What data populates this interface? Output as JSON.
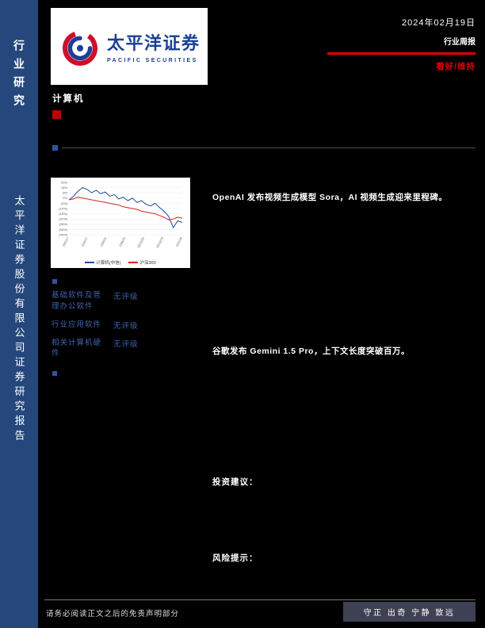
{
  "sidebar": {
    "top_label": "行业研究",
    "bottom_label": "太平洋证券股份有限公司证券研究报告"
  },
  "header": {
    "logo_cn": "太平洋证券",
    "logo_en": "PACIFIC SECURITIES",
    "date": "2024年02月19日",
    "report_type": "行业周报",
    "rating": "看好/维持"
  },
  "page": {
    "industry": "计算机"
  },
  "highlights": {
    "first": "OpenAI 发布视频生成模型 Sora，AI 视频生成迎来里程碑。",
    "second": "谷歌发布 Gemini 1.5 Pro，上下文长度突破百万。"
  },
  "subratings": {
    "rows": [
      {
        "name": "基础软件及管理办公软件",
        "rating": "无评级"
      },
      {
        "name": "行业应用软件",
        "rating": "无评级"
      },
      {
        "name": "相关计算机硬件",
        "rating": "无评级"
      }
    ]
  },
  "sections": {
    "investment": "投资建议：",
    "risk": "风险提示："
  },
  "footer": {
    "disclaimer": "请务必阅读正文之后的免责声明部分",
    "motto": "守正 出奇 宁静 致远"
  },
  "colors": {
    "accent_red": "#C00000",
    "brand_blue": "#1B3F94",
    "sidebar_navy": "#25477B",
    "link_blue": "#3C64AD"
  },
  "chart_data": {
    "type": "line",
    "title": "",
    "x_labels": [
      "23/2/17",
      "23/4/17",
      "23/6/16",
      "23/8/15",
      "23/10/20",
      "23/12/19",
      "24/2/18"
    ],
    "y_ticks": [
      "20%",
      "14%",
      "8%",
      "2%",
      "(4%)",
      "(10%)",
      "(16%)",
      "(22%)",
      "(28%)",
      "(34%)",
      "(40%)"
    ],
    "y_tick_values": [
      20,
      14,
      8,
      2,
      -4,
      -10,
      -16,
      -22,
      -28,
      -34,
      -40
    ],
    "ylim": [
      -40,
      20
    ],
    "grid": true,
    "legend_position": "bottom",
    "series": [
      {
        "name": "计算机(中信)",
        "color": "#1F4E9C",
        "values": [
          0,
          4,
          10,
          14,
          12,
          8,
          11,
          7,
          9,
          4,
          6,
          1,
          3,
          -1,
          2,
          -3,
          -1,
          -5,
          -7,
          -4,
          -9,
          -13,
          -19,
          -32,
          -24,
          -26
        ]
      },
      {
        "name": "沪深300",
        "color": "#E02020",
        "values": [
          0,
          1,
          3,
          2,
          1,
          0,
          -1,
          -2,
          -3,
          -4,
          -5,
          -6,
          -8,
          -9,
          -10,
          -11,
          -13,
          -14,
          -15,
          -16,
          -18,
          -20,
          -23,
          -22,
          -20,
          -21
        ]
      }
    ]
  }
}
